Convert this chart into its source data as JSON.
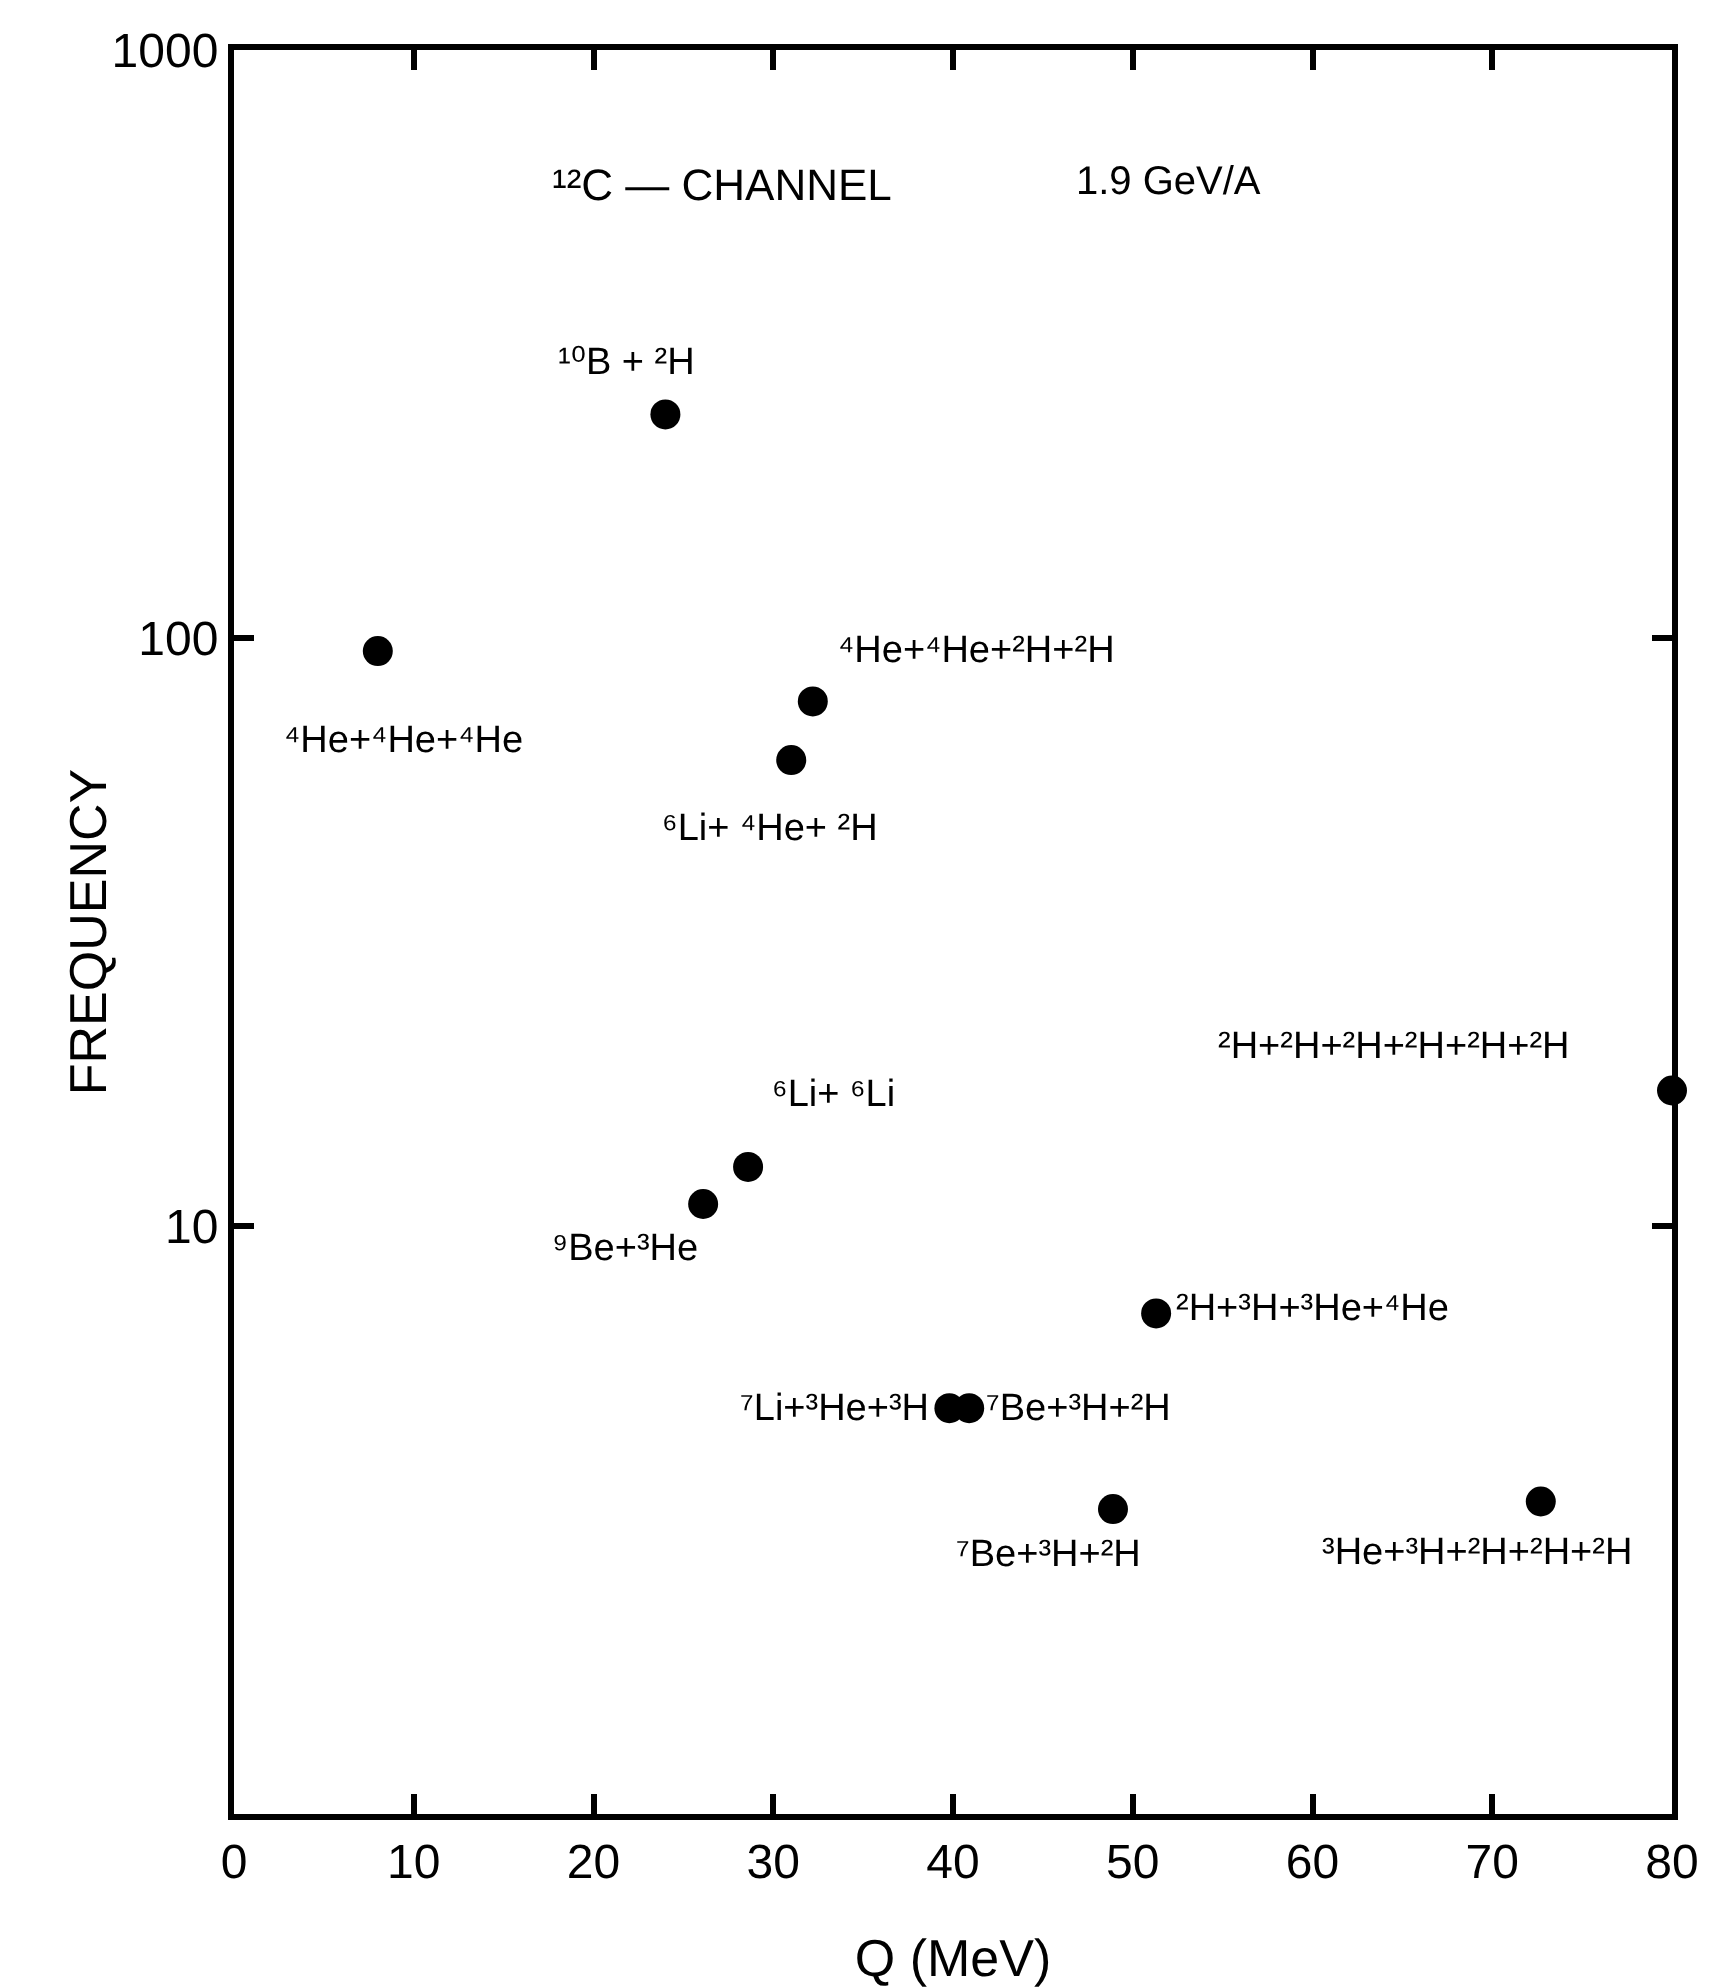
{
  "chart_data": {
    "type": "scatter",
    "title": "¹²C — CHANNEL",
    "subtitle": "1.9 GeV/A",
    "xlabel": "Q (MeV)",
    "ylabel": "FREQUENCY",
    "x": [
      8.0,
      24.0,
      32.2,
      31.0,
      28.6,
      26.1,
      51.3,
      39.8,
      40.9,
      48.9,
      72.7,
      80
    ],
    "series": [
      {
        "color": "#000000",
        "values": [
          95,
          240,
          78,
          62,
          12.6,
          10.9,
          7.1,
          4.9,
          4.9,
          3.3,
          3.4,
          17
        ]
      }
    ],
    "annotations": [
      {
        "text": "¹⁰B + ²H",
        "x": 24.0,
        "y": 240
      },
      {
        "text": "⁴He+⁴He+⁴He",
        "x": 8.0,
        "y": 95
      },
      {
        "text": "⁴He+⁴He+²H+²H",
        "x": 32.2,
        "y": 78
      },
      {
        "text": "⁶Li+ ⁴He+ ²H",
        "x": 31.0,
        "y": 62
      },
      {
        "text": "⁶Li+ ⁶Li",
        "x": 28.6,
        "y": 12.6
      },
      {
        "text": "⁹Be+³He",
        "x": 26.1,
        "y": 10.9
      },
      {
        "text": "²H+²H+²H+²H+²H+²H",
        "x": 80,
        "y": 17
      },
      {
        "text": "²H+³H+³He+⁴He",
        "x": 51.3,
        "y": 7.1
      },
      {
        "text": "⁷Li+³He+³H",
        "x": 39.8,
        "y": 4.9
      },
      {
        "text": "⁷Be+³H+²H",
        "x": 40.9,
        "y": 4.9
      },
      {
        "text": "⁷Be+³H+²H",
        "x": 48.9,
        "y": 3.3
      },
      {
        "text": "³He+³H+²H+²H+²H",
        "x": 72.7,
        "y": 3.4
      }
    ],
    "xlim": [
      0,
      80
    ],
    "xticks": [
      0,
      10,
      20,
      30,
      40,
      50,
      60,
      70,
      80
    ],
    "ylim": [
      1,
      1000
    ],
    "yticks": [
      10,
      100,
      1000
    ],
    "log": "y",
    "grid": false,
    "marker": "circle"
  }
}
